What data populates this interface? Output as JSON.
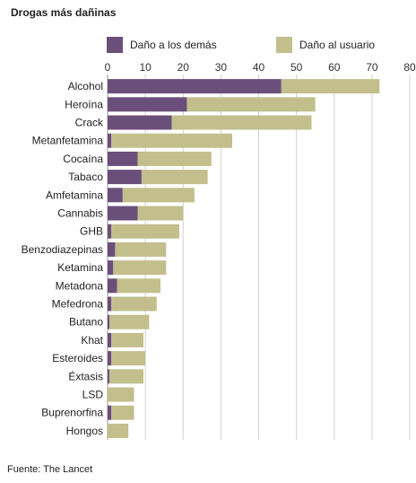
{
  "chart_data": {
    "type": "bar",
    "stacked": true,
    "orientation": "horizontal",
    "title": "Drogas más dañinas",
    "source": "Fuente: The Lancet",
    "xlim": [
      0,
      80
    ],
    "xticks": [
      0,
      10,
      20,
      30,
      40,
      50,
      60,
      70,
      80
    ],
    "grid": true,
    "legend_position": "top",
    "categories": [
      "Alcohol",
      "Heroína",
      "Crack",
      "Metanfetamina",
      "Cocaína",
      "Tabaco",
      "Amfetamina",
      "Cannabis",
      "GHB",
      "Benzodiazepinas",
      "Ketamina",
      "Metadona",
      "Mefedrona",
      "Butano",
      "Khat",
      "Esteroides",
      "Éxtasis",
      "LSD",
      "Buprenorfina",
      "Hongos"
    ],
    "series": [
      {
        "name": "Daño a los demás",
        "color": "#6b4f7b",
        "values": [
          46,
          21,
          17,
          1,
          8,
          9,
          4,
          8,
          1,
          2,
          1.5,
          2.5,
          1,
          0.5,
          1,
          1,
          0.5,
          0,
          1,
          0
        ]
      },
      {
        "name": "Daño al usuario",
        "color": "#c2bf8c",
        "values": [
          26,
          34,
          37,
          32,
          19.5,
          17.5,
          19,
          12,
          18,
          13.5,
          14,
          11.5,
          12,
          10.5,
          8.5,
          9,
          9,
          7,
          6,
          5.5
        ]
      }
    ]
  }
}
